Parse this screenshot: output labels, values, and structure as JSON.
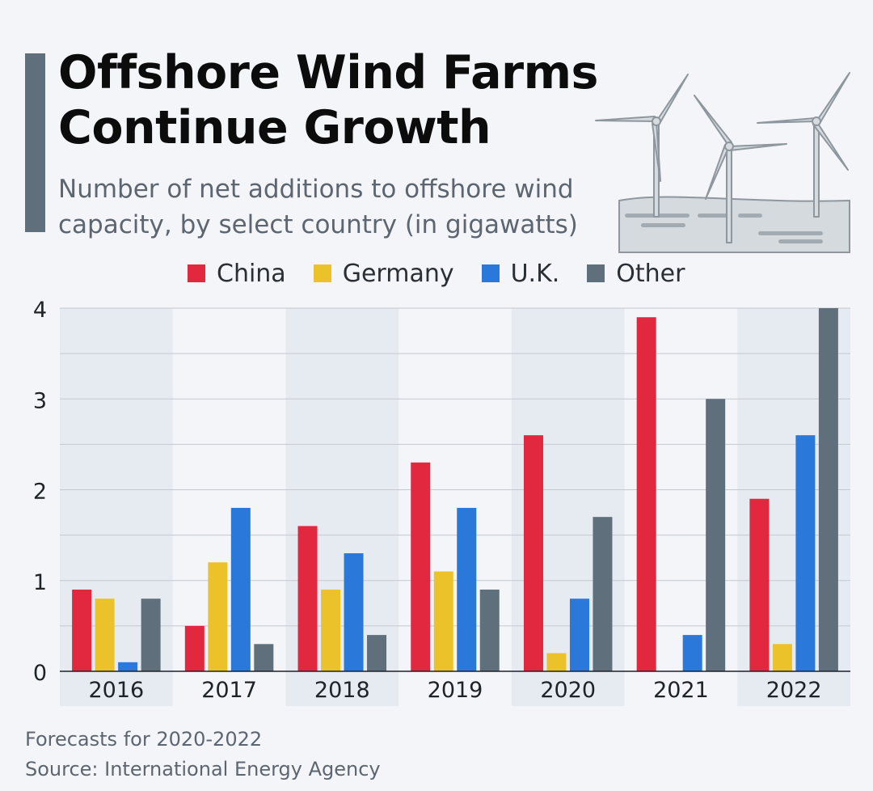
{
  "header": {
    "title_line1": "Offshore Wind Farms",
    "title_line2": "Continue Growth",
    "subtitle_line1": "Number of net additions to offshore wind",
    "subtitle_line2": "capacity, by select country (in gigawatts)"
  },
  "footer": {
    "note": "Forecasts for 2020-2022",
    "source": "Source: International Energy Agency"
  },
  "colors": {
    "China": "#e2283f",
    "Germany": "#ebc22a",
    "U.K.": "#2a79da",
    "Other": "#5f6f7b"
  },
  "chart_data": {
    "type": "bar",
    "categories": [
      "2016",
      "2017",
      "2018",
      "2019",
      "2020",
      "2021",
      "2022"
    ],
    "series": [
      {
        "name": "China",
        "values": [
          0.9,
          0.5,
          1.6,
          2.3,
          2.6,
          3.9,
          1.9
        ]
      },
      {
        "name": "Germany",
        "values": [
          0.8,
          1.2,
          0.9,
          1.1,
          0.2,
          0.0,
          0.3
        ]
      },
      {
        "name": "U.K.",
        "values": [
          0.1,
          1.8,
          1.3,
          1.8,
          0.8,
          0.4,
          2.6
        ]
      },
      {
        "name": "Other",
        "values": [
          0.8,
          0.3,
          0.4,
          0.9,
          1.7,
          3.0,
          4.0
        ]
      }
    ],
    "y_ticks": [
      "0",
      "1",
      "2",
      "3",
      "4"
    ],
    "ylim": [
      0,
      4
    ],
    "grid": true,
    "legend_position": "top"
  }
}
